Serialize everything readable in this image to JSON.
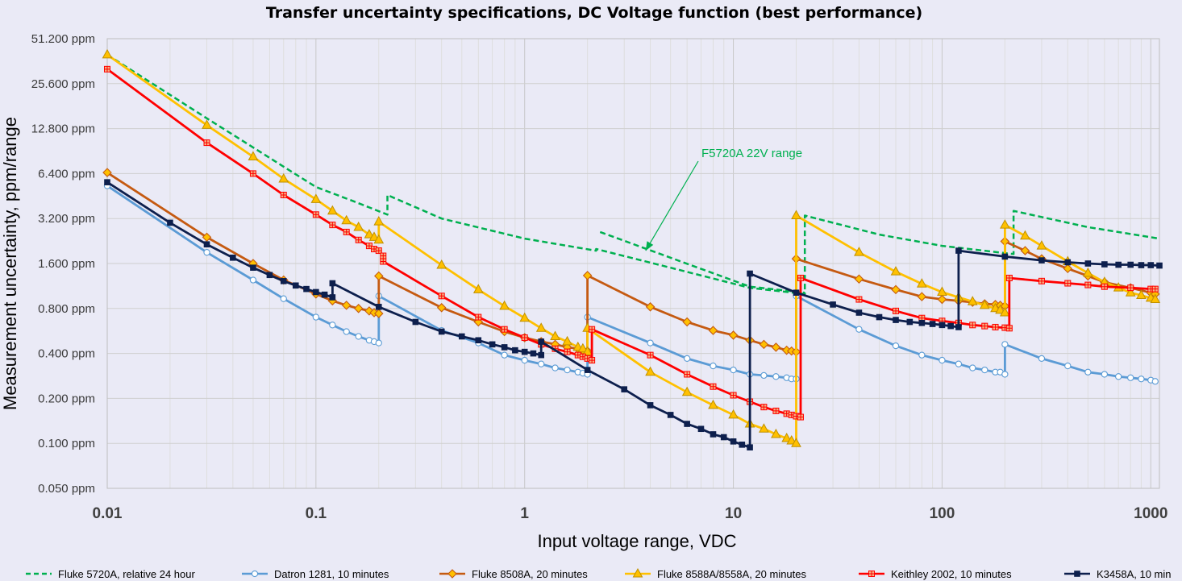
{
  "chart_data": {
    "type": "line",
    "title": "Transfer uncertainty specifications, DC Voltage function (best performance)",
    "xlabel": "Input voltage range, VDC",
    "ylabel": "Measurement uncertainty, ppm/range",
    "xscale": "log",
    "yscale": "log2",
    "xlim": [
      0.01,
      1100
    ],
    "ylim": [
      0.05,
      51.2
    ],
    "grid": true,
    "legend_position": "bottom",
    "x_ticks": [
      "0.01",
      "0.1",
      "1",
      "10",
      "100",
      "1000"
    ],
    "y_ticks": [
      "0.050 ppm",
      "0.100 ppm",
      "0.200 ppm",
      "0.400 ppm",
      "0.800 ppm",
      "1.600 ppm",
      "3.200 ppm",
      "6.400 ppm",
      "12.800 ppm",
      "25.600 ppm",
      "51.200 ppm"
    ],
    "series": [
      {
        "name": "Fluke 5720A, relative 24 hour",
        "color": "#00b050",
        "marker": "none",
        "dash": "dashed",
        "points": [
          [
            0.01,
            40
          ],
          [
            0.03,
            15
          ],
          [
            0.1,
            5.2
          ],
          [
            0.15,
            4.2
          ],
          [
            0.22,
            3.4
          ],
          [
            0.22,
            4.6
          ],
          [
            0.4,
            3.2
          ],
          [
            1,
            2.35
          ],
          [
            2.2,
            1.95
          ],
          [
            2.2,
            2.0
          ],
          [
            5,
            1.5
          ],
          [
            12,
            1.1
          ],
          [
            22,
            1.0
          ],
          [
            22,
            3.35
          ],
          [
            50,
            2.5
          ],
          [
            100,
            2.1
          ],
          [
            220,
            1.85
          ],
          [
            220,
            3.6
          ],
          [
            500,
            2.8
          ],
          [
            1100,
            2.35
          ]
        ]
      },
      {
        "name": "F5720A 22V range",
        "color": "#00b050",
        "marker": "none",
        "dash": "dashed",
        "legend": false,
        "points": [
          [
            2.3,
            2.6
          ],
          [
            5,
            1.75
          ],
          [
            12,
            1.12
          ],
          [
            22,
            1.02
          ]
        ]
      },
      {
        "name": "Datron 1281, 10 minutes",
        "color": "#5b9bd5",
        "marker": "open-circle",
        "dash": "solid",
        "points": [
          [
            0.01,
            5.3
          ],
          [
            0.03,
            1.9
          ],
          [
            0.05,
            1.24
          ],
          [
            0.07,
            0.93
          ],
          [
            0.1,
            0.7
          ],
          [
            0.12,
            0.62
          ],
          [
            0.14,
            0.56
          ],
          [
            0.16,
            0.52
          ],
          [
            0.18,
            0.49
          ],
          [
            0.19,
            0.48
          ],
          [
            0.2,
            0.47
          ],
          [
            0.2,
            0.97
          ],
          [
            0.4,
            0.57
          ],
          [
            0.6,
            0.47
          ],
          [
            0.8,
            0.39
          ],
          [
            1,
            0.36
          ],
          [
            1.2,
            0.34
          ],
          [
            1.4,
            0.32
          ],
          [
            1.6,
            0.31
          ],
          [
            1.8,
            0.3
          ],
          [
            1.9,
            0.295
          ],
          [
            2,
            0.29
          ],
          [
            2,
            0.7
          ],
          [
            4,
            0.47
          ],
          [
            6,
            0.37
          ],
          [
            8,
            0.33
          ],
          [
            10,
            0.31
          ],
          [
            12,
            0.29
          ],
          [
            14,
            0.285
          ],
          [
            16,
            0.28
          ],
          [
            18,
            0.275
          ],
          [
            19,
            0.27
          ],
          [
            20,
            0.27
          ],
          [
            20,
            0.97
          ],
          [
            40,
            0.58
          ],
          [
            60,
            0.45
          ],
          [
            80,
            0.39
          ],
          [
            100,
            0.36
          ],
          [
            120,
            0.34
          ],
          [
            140,
            0.32
          ],
          [
            160,
            0.31
          ],
          [
            180,
            0.3
          ],
          [
            190,
            0.3
          ],
          [
            200,
            0.29
          ],
          [
            200,
            0.46
          ],
          [
            300,
            0.37
          ],
          [
            400,
            0.33
          ],
          [
            500,
            0.3
          ],
          [
            600,
            0.29
          ],
          [
            700,
            0.28
          ],
          [
            800,
            0.275
          ],
          [
            900,
            0.27
          ],
          [
            1000,
            0.265
          ],
          [
            1050,
            0.26
          ]
        ]
      },
      {
        "name": "Fluke 8508A, 20 minutes",
        "color": "#c55a11",
        "marker": "diamond",
        "dash": "solid",
        "points": [
          [
            0.01,
            6.5
          ],
          [
            0.03,
            2.4
          ],
          [
            0.05,
            1.6
          ],
          [
            0.07,
            1.24
          ],
          [
            0.1,
            1.0
          ],
          [
            0.12,
            0.9
          ],
          [
            0.14,
            0.84
          ],
          [
            0.16,
            0.8
          ],
          [
            0.18,
            0.77
          ],
          [
            0.19,
            0.75
          ],
          [
            0.2,
            0.74
          ],
          [
            0.2,
            1.32
          ],
          [
            0.4,
            0.81
          ],
          [
            0.6,
            0.65
          ],
          [
            0.8,
            0.56
          ],
          [
            1,
            0.51
          ],
          [
            1.2,
            0.48
          ],
          [
            1.4,
            0.46
          ],
          [
            1.6,
            0.44
          ],
          [
            1.8,
            0.43
          ],
          [
            1.9,
            0.42
          ],
          [
            2,
            0.415
          ],
          [
            2,
            1.33
          ],
          [
            4,
            0.82
          ],
          [
            6,
            0.65
          ],
          [
            8,
            0.57
          ],
          [
            10,
            0.53
          ],
          [
            12,
            0.49
          ],
          [
            14,
            0.46
          ],
          [
            16,
            0.44
          ],
          [
            18,
            0.42
          ],
          [
            19,
            0.415
          ],
          [
            20,
            0.41
          ],
          [
            20,
            1.72
          ],
          [
            40,
            1.26
          ],
          [
            60,
            1.07
          ],
          [
            80,
            0.96
          ],
          [
            100,
            0.92
          ],
          [
            120,
            0.9
          ],
          [
            140,
            0.88
          ],
          [
            160,
            0.86
          ],
          [
            180,
            0.85
          ],
          [
            190,
            0.84
          ],
          [
            200,
            0.83
          ],
          [
            200,
            2.25
          ],
          [
            250,
            1.95
          ],
          [
            300,
            1.72
          ],
          [
            400,
            1.48
          ],
          [
            500,
            1.32
          ],
          [
            600,
            1.2
          ],
          [
            800,
            1.1
          ],
          [
            1000,
            1.02
          ],
          [
            1050,
            1.0
          ]
        ]
      },
      {
        "name": "Fluke 8588A/8558A, 20 minutes",
        "color": "#ffc000",
        "marker": "triangle",
        "dash": "solid",
        "points": [
          [
            0.01,
            40
          ],
          [
            0.03,
            13.5
          ],
          [
            0.05,
            8.3
          ],
          [
            0.07,
            5.9
          ],
          [
            0.1,
            4.3
          ],
          [
            0.12,
            3.6
          ],
          [
            0.14,
            3.1
          ],
          [
            0.16,
            2.8
          ],
          [
            0.18,
            2.5
          ],
          [
            0.19,
            2.4
          ],
          [
            0.2,
            2.3
          ],
          [
            0.2,
            3.05
          ],
          [
            0.4,
            1.56
          ],
          [
            0.6,
            1.07
          ],
          [
            0.8,
            0.83
          ],
          [
            1,
            0.69
          ],
          [
            1.2,
            0.59
          ],
          [
            1.4,
            0.52
          ],
          [
            1.6,
            0.48
          ],
          [
            1.8,
            0.44
          ],
          [
            1.9,
            0.43
          ],
          [
            2,
            0.41
          ],
          [
            2,
            0.59
          ],
          [
            4,
            0.3
          ],
          [
            6,
            0.22
          ],
          [
            8,
            0.18
          ],
          [
            10,
            0.155
          ],
          [
            12,
            0.135
          ],
          [
            14,
            0.125
          ],
          [
            16,
            0.115
          ],
          [
            18,
            0.108
          ],
          [
            19,
            0.104
          ],
          [
            20,
            0.1
          ],
          [
            20,
            3.35
          ],
          [
            40,
            1.9
          ],
          [
            60,
            1.41
          ],
          [
            80,
            1.17
          ],
          [
            100,
            1.03
          ],
          [
            120,
            0.95
          ],
          [
            140,
            0.89
          ],
          [
            160,
            0.84
          ],
          [
            180,
            0.8
          ],
          [
            190,
            0.78
          ],
          [
            200,
            0.75
          ],
          [
            200,
            2.9
          ],
          [
            250,
            2.45
          ],
          [
            300,
            2.1
          ],
          [
            400,
            1.65
          ],
          [
            500,
            1.38
          ],
          [
            600,
            1.2
          ],
          [
            700,
            1.1
          ],
          [
            800,
            1.02
          ],
          [
            900,
            0.98
          ],
          [
            1000,
            0.94
          ],
          [
            1050,
            0.92
          ]
        ]
      },
      {
        "name": "Keithley 2002, 10 minutes",
        "color": "#ff0000",
        "marker": "plus-box",
        "dash": "solid",
        "points": [
          [
            0.01,
            32
          ],
          [
            0.03,
            10.3
          ],
          [
            0.05,
            6.4
          ],
          [
            0.07,
            4.6
          ],
          [
            0.1,
            3.4
          ],
          [
            0.12,
            2.9
          ],
          [
            0.14,
            2.6
          ],
          [
            0.16,
            2.3
          ],
          [
            0.18,
            2.1
          ],
          [
            0.19,
            2.0
          ],
          [
            0.2,
            1.95
          ],
          [
            0.21,
            1.8
          ],
          [
            0.21,
            1.65
          ],
          [
            0.4,
            0.97
          ],
          [
            0.6,
            0.7
          ],
          [
            0.8,
            0.58
          ],
          [
            1,
            0.51
          ],
          [
            1.2,
            0.46
          ],
          [
            1.4,
            0.43
          ],
          [
            1.6,
            0.41
          ],
          [
            1.8,
            0.39
          ],
          [
            1.9,
            0.38
          ],
          [
            2,
            0.37
          ],
          [
            2.1,
            0.36
          ],
          [
            2.1,
            0.58
          ],
          [
            4,
            0.39
          ],
          [
            6,
            0.29
          ],
          [
            8,
            0.24
          ],
          [
            10,
            0.21
          ],
          [
            12,
            0.19
          ],
          [
            14,
            0.175
          ],
          [
            16,
            0.165
          ],
          [
            18,
            0.158
          ],
          [
            19,
            0.155
          ],
          [
            20,
            0.152
          ],
          [
            21,
            0.15
          ],
          [
            21,
            1.28
          ],
          [
            40,
            0.92
          ],
          [
            60,
            0.77
          ],
          [
            80,
            0.69
          ],
          [
            100,
            0.66
          ],
          [
            120,
            0.64
          ],
          [
            140,
            0.62
          ],
          [
            160,
            0.61
          ],
          [
            180,
            0.6
          ],
          [
            200,
            0.595
          ],
          [
            210,
            0.59
          ],
          [
            210,
            1.28
          ],
          [
            300,
            1.22
          ],
          [
            400,
            1.18
          ],
          [
            500,
            1.15
          ],
          [
            600,
            1.12
          ],
          [
            800,
            1.1
          ],
          [
            1000,
            1.08
          ],
          [
            1050,
            1.08
          ]
        ]
      },
      {
        "name": "K3458A, 10 min",
        "color": "#0d1f4d",
        "marker": "filled-square",
        "dash": "solid",
        "points": [
          [
            0.01,
            5.6
          ],
          [
            0.02,
            3.0
          ],
          [
            0.03,
            2.15
          ],
          [
            0.04,
            1.75
          ],
          [
            0.05,
            1.5
          ],
          [
            0.06,
            1.34
          ],
          [
            0.07,
            1.22
          ],
          [
            0.08,
            1.14
          ],
          [
            0.09,
            1.08
          ],
          [
            0.1,
            1.03
          ],
          [
            0.11,
            0.99
          ],
          [
            0.12,
            0.95
          ],
          [
            0.12,
            1.18
          ],
          [
            0.2,
            0.82
          ],
          [
            0.3,
            0.65
          ],
          [
            0.4,
            0.56
          ],
          [
            0.5,
            0.52
          ],
          [
            0.6,
            0.49
          ],
          [
            0.7,
            0.46
          ],
          [
            0.8,
            0.44
          ],
          [
            0.9,
            0.42
          ],
          [
            1,
            0.41
          ],
          [
            1.1,
            0.4
          ],
          [
            1.2,
            0.39
          ],
          [
            1.2,
            0.48
          ],
          [
            2,
            0.31
          ],
          [
            3,
            0.23
          ],
          [
            4,
            0.18
          ],
          [
            5,
            0.155
          ],
          [
            6,
            0.135
          ],
          [
            7,
            0.125
          ],
          [
            8,
            0.115
          ],
          [
            9,
            0.11
          ],
          [
            10,
            0.103
          ],
          [
            11,
            0.098
          ],
          [
            12,
            0.094
          ],
          [
            12,
            1.37
          ],
          [
            20,
            1.02
          ],
          [
            30,
            0.85
          ],
          [
            40,
            0.75
          ],
          [
            50,
            0.7
          ],
          [
            60,
            0.67
          ],
          [
            70,
            0.65
          ],
          [
            80,
            0.64
          ],
          [
            90,
            0.63
          ],
          [
            100,
            0.62
          ],
          [
            110,
            0.61
          ],
          [
            120,
            0.6
          ],
          [
            120,
            1.95
          ],
          [
            200,
            1.78
          ],
          [
            300,
            1.68
          ],
          [
            400,
            1.63
          ],
          [
            500,
            1.6
          ],
          [
            600,
            1.58
          ],
          [
            700,
            1.57
          ],
          [
            800,
            1.57
          ],
          [
            900,
            1.56
          ],
          [
            1000,
            1.56
          ],
          [
            1100,
            1.55
          ]
        ]
      }
    ],
    "annotations": [
      {
        "text": "F5720A 22V range",
        "color": "#00b050",
        "points_to": [
          3.8,
          1.95
        ]
      }
    ]
  }
}
